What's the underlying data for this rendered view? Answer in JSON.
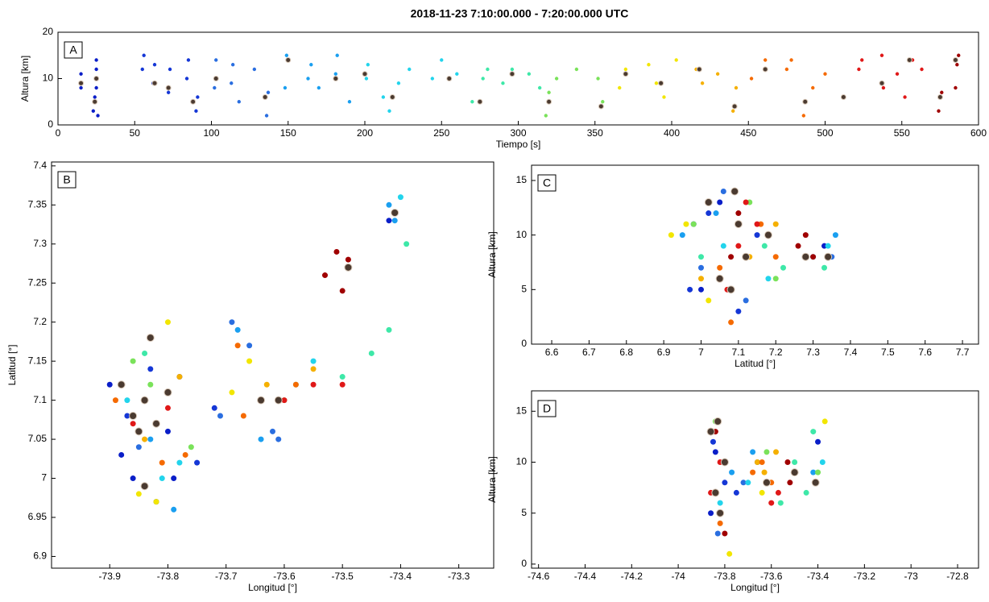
{
  "chart_data": [
    {
      "type": "scatter",
      "title": "2018-11-23   7:10:00.000  -  7:20:00.000 UTC",
      "panel_label": "A",
      "xlabel": "Tiempo [s]",
      "ylabel": "Altura [km]",
      "xlim": [
        0,
        600
      ],
      "xticks": [
        0,
        50,
        100,
        150,
        200,
        250,
        300,
        350,
        400,
        450,
        500,
        550,
        600
      ],
      "ylim": [
        0,
        20
      ],
      "yticks": [
        0,
        10,
        20
      ],
      "series": [
        {
          "color": "#0a1ec8",
          "x": [
            15,
            15,
            23,
            24,
            25,
            25,
            25,
            26
          ],
          "values": [
            8,
            11,
            3,
            6,
            8,
            12,
            14,
            2
          ]
        },
        {
          "color": "#1537d6",
          "x": [
            55,
            56,
            62,
            63,
            72,
            73,
            84,
            85,
            90,
            91
          ],
          "values": [
            12,
            15,
            9,
            13,
            7,
            12,
            10,
            14,
            3,
            6
          ]
        },
        {
          "color": "#2a6ee0",
          "x": [
            102,
            103,
            113,
            114,
            118,
            128,
            136,
            137
          ],
          "values": [
            8,
            14,
            9,
            13,
            5,
            12,
            2,
            7
          ]
        },
        {
          "color": "#1a9ff0",
          "x": [
            148,
            149,
            163,
            165,
            170,
            181,
            182,
            190
          ],
          "values": [
            8,
            15,
            10,
            13,
            8,
            11,
            15,
            5
          ]
        },
        {
          "color": "#22d4ec",
          "x": [
            201,
            202,
            212,
            216,
            222,
            229,
            244,
            250,
            260
          ],
          "values": [
            10,
            13,
            6,
            3,
            9,
            12,
            10,
            14,
            11
          ]
        },
        {
          "color": "#3ee8a8",
          "x": [
            270,
            277,
            280,
            290,
            296,
            307,
            314
          ],
          "values": [
            5,
            10,
            12,
            9,
            12,
            11,
            8
          ]
        },
        {
          "color": "#7ae25a",
          "x": [
            318,
            320,
            325,
            338,
            352,
            355
          ],
          "values": [
            2,
            7,
            10,
            12,
            10,
            5
          ]
        },
        {
          "color": "#f2e600",
          "x": [
            366,
            370,
            385,
            390,
            395,
            403
          ],
          "values": [
            8,
            12,
            13,
            9,
            6,
            14
          ]
        },
        {
          "color": "#f5b000",
          "x": [
            416,
            420,
            430,
            440,
            442
          ],
          "values": [
            12,
            9,
            11,
            3,
            8
          ]
        },
        {
          "color": "#f56a00",
          "x": [
            452,
            461,
            475,
            478,
            486,
            492,
            500
          ],
          "values": [
            10,
            14,
            12,
            14,
            2,
            8,
            11
          ]
        },
        {
          "color": "#e01818",
          "x": [
            512,
            522,
            524,
            537,
            538,
            547,
            552,
            557,
            563
          ],
          "values": [
            6,
            12,
            14,
            15,
            8,
            11,
            6,
            14,
            12
          ]
        },
        {
          "color": "#a00000",
          "x": [
            574,
            576,
            585,
            586,
            587
          ],
          "values": [
            3,
            7,
            8,
            13,
            15
          ]
        },
        {
          "color": "#4a3a30",
          "edgecolor": "#d8c8b8",
          "x": [
            15,
            24,
            25,
            63,
            72,
            88,
            103,
            135,
            150,
            181,
            200,
            218,
            255,
            275,
            296,
            320,
            354,
            370,
            393,
            418,
            441,
            461,
            487,
            512,
            537,
            555,
            575,
            585
          ],
          "values": [
            9,
            5,
            10,
            9,
            8,
            5,
            10,
            6,
            14,
            10,
            11,
            6,
            10,
            5,
            11,
            5,
            4,
            11,
            9,
            12,
            4,
            12,
            5,
            6,
            9,
            14,
            6,
            14
          ]
        }
      ]
    },
    {
      "type": "scatter",
      "panel_label": "B",
      "xlabel": "Longitud [°]",
      "ylabel": "Latitud [°]",
      "xlim": [
        -74.0,
        -73.24
      ],
      "xticks": [
        -73.9,
        -73.8,
        -73.7,
        -73.6,
        -73.5,
        -73.4,
        -73.3
      ],
      "ylim": [
        6.885,
        7.405
      ],
      "yticks": [
        6.9,
        6.95,
        7,
        7.05,
        7.1,
        7.15,
        7.2,
        7.25,
        7.3,
        7.35,
        7.4
      ],
      "series": [
        {
          "color": "#0a1ec8",
          "x": [
            -73.9,
            -73.88,
            -73.86,
            -73.8,
            -73.79,
            -73.42
          ],
          "values": [
            7.12,
            7.03,
            7.0,
            7.06,
            7.0,
            7.33
          ]
        },
        {
          "color": "#1537d6",
          "x": [
            -73.87,
            -73.83,
            -73.78,
            -73.75,
            -73.82,
            -73.72
          ],
          "values": [
            7.08,
            7.14,
            7.13,
            7.02,
            6.97,
            7.09
          ]
        },
        {
          "color": "#2a6ee0",
          "x": [
            -73.71,
            -73.69,
            -73.66,
            -73.62,
            -73.61,
            -73.85
          ],
          "values": [
            7.08,
            7.2,
            7.17,
            7.06,
            7.05,
            7.04
          ]
        },
        {
          "color": "#1a9ff0",
          "x": [
            -73.68,
            -73.64,
            -73.42,
            -73.41,
            -73.79,
            -73.83
          ],
          "values": [
            7.19,
            7.05,
            7.35,
            7.33,
            6.96,
            7.05
          ]
        },
        {
          "color": "#22d4ec",
          "x": [
            -73.81,
            -73.78,
            -73.4,
            -73.87,
            -73.55
          ],
          "values": [
            7.0,
            7.02,
            7.36,
            7.1,
            7.15
          ]
        },
        {
          "color": "#3ee8a8",
          "x": [
            -73.5,
            -73.45,
            -73.42,
            -73.39,
            -73.58,
            -73.84
          ],
          "values": [
            7.13,
            7.16,
            7.19,
            7.3,
            7.12,
            7.16
          ]
        },
        {
          "color": "#7ae25a",
          "x": [
            -73.86,
            -73.83,
            -73.76,
            -73.6
          ],
          "values": [
            7.15,
            7.12,
            7.04,
            7.1
          ]
        },
        {
          "color": "#f2e600",
          "x": [
            -73.85,
            -73.82,
            -73.66,
            -73.69,
            -73.8
          ],
          "values": [
            6.98,
            6.97,
            7.15,
            7.11,
            7.2
          ]
        },
        {
          "color": "#f5b000",
          "x": [
            -73.84,
            -73.78,
            -73.63,
            -73.55
          ],
          "values": [
            7.05,
            7.13,
            7.12,
            7.14
          ]
        },
        {
          "color": "#f56a00",
          "x": [
            -73.89,
            -73.77,
            -73.68,
            -73.67,
            -73.58,
            -73.81
          ],
          "values": [
            7.1,
            7.03,
            7.17,
            7.08,
            7.12,
            7.02
          ]
        },
        {
          "color": "#e01818",
          "x": [
            -73.86,
            -73.84,
            -73.8,
            -73.6,
            -73.55,
            -73.5,
            -73.83
          ],
          "values": [
            7.07,
            7.1,
            7.09,
            7.1,
            7.12,
            7.12,
            7.18
          ]
        },
        {
          "color": "#a00000",
          "x": [
            -73.53,
            -73.51,
            -73.49,
            -73.5,
            -73.82
          ],
          "values": [
            7.26,
            7.29,
            7.28,
            7.24,
            7.07
          ]
        },
        {
          "color": "#4a3a30",
          "edgecolor": "#d8c8b8",
          "x": [
            -73.88,
            -73.86,
            -73.84,
            -73.82,
            -73.8,
            -73.85,
            -73.83,
            -73.64,
            -73.61,
            -73.49,
            -73.41,
            -73.84
          ],
          "values": [
            7.12,
            7.08,
            7.1,
            7.07,
            7.11,
            7.06,
            7.18,
            7.1,
            7.1,
            7.27,
            7.34,
            6.99
          ]
        }
      ]
    },
    {
      "type": "scatter",
      "panel_label": "C",
      "xlabel": "Latitud [°]",
      "ylabel": "Altura [km]",
      "xlim": [
        6.546,
        7.743
      ],
      "xticks": [
        6.6,
        6.7,
        6.8,
        6.9,
        7,
        7.1,
        7.2,
        7.3,
        7.4,
        7.5,
        7.6,
        7.7
      ],
      "ylim": [
        0,
        16.4
      ],
      "yticks": [
        0,
        5,
        10,
        15
      ],
      "series": [
        {
          "color": "#0a1ec8",
          "x": [
            7.0,
            6.98,
            7.05,
            7.33
          ],
          "values": [
            5,
            11,
            13,
            9
          ]
        },
        {
          "color": "#1537d6",
          "x": [
            6.97,
            7.02,
            7.1,
            7.15
          ],
          "values": [
            5,
            12,
            3,
            10
          ]
        },
        {
          "color": "#2a6ee0",
          "x": [
            7.0,
            7.06,
            7.12,
            7.35
          ],
          "values": [
            7,
            14,
            4,
            8
          ]
        },
        {
          "color": "#1a9ff0",
          "x": [
            6.95,
            7.04,
            7.3,
            7.36
          ],
          "values": [
            10,
            12,
            8,
            10
          ]
        },
        {
          "color": "#22d4ec",
          "x": [
            7.06,
            7.18,
            7.34
          ],
          "values": [
            9,
            6,
            9
          ]
        },
        {
          "color": "#3ee8a8",
          "x": [
            7.0,
            7.17,
            7.33,
            7.22
          ],
          "values": [
            8,
            9,
            7,
            7
          ]
        },
        {
          "color": "#7ae25a",
          "x": [
            6.98,
            7.2,
            7.13
          ],
          "values": [
            11,
            6,
            13
          ]
        },
        {
          "color": "#f2e600",
          "x": [
            6.92,
            6.96,
            7.02
          ],
          "values": [
            10,
            11,
            4
          ]
        },
        {
          "color": "#f5b000",
          "x": [
            7.0,
            7.2,
            7.13
          ],
          "values": [
            6,
            11,
            8
          ]
        },
        {
          "color": "#f56a00",
          "x": [
            7.05,
            7.16,
            7.2,
            7.08
          ],
          "values": [
            7,
            11,
            8,
            2
          ]
        },
        {
          "color": "#e01818",
          "x": [
            7.07,
            7.1,
            7.12,
            7.15
          ],
          "values": [
            5,
            9,
            13,
            11
          ]
        },
        {
          "color": "#a00000",
          "x": [
            7.08,
            7.1,
            7.26,
            7.28,
            7.3
          ],
          "values": [
            8,
            12,
            9,
            10,
            8
          ]
        },
        {
          "color": "#4a3a30",
          "edgecolor": "#d8c8b8",
          "x": [
            7.02,
            7.05,
            7.08,
            7.1,
            7.09,
            7.12,
            7.18,
            7.28,
            7.34
          ],
          "values": [
            13,
            6,
            5,
            11,
            14,
            8,
            10,
            8,
            8
          ]
        }
      ]
    },
    {
      "type": "scatter",
      "panel_label": "D",
      "xlabel": "Longitud [°]",
      "ylabel": "Altura [km]",
      "xlim": [
        -74.63,
        -72.71
      ],
      "xticks": [
        -74.6,
        -74.4,
        -74.2,
        -74,
        -73.8,
        -73.6,
        -73.4,
        -73.2,
        -73,
        -72.8
      ],
      "ylim": [
        -0.4,
        17
      ],
      "yticks": [
        0,
        5,
        10,
        15
      ],
      "series": [
        {
          "color": "#0a1ec8",
          "x": [
            -73.86,
            -73.84,
            -73.4
          ],
          "values": [
            5,
            11,
            12
          ]
        },
        {
          "color": "#1537d6",
          "x": [
            -73.85,
            -73.8,
            -73.75
          ],
          "values": [
            12,
            8,
            7
          ]
        },
        {
          "color": "#2a6ee0",
          "x": [
            -73.83,
            -73.72,
            -73.66
          ],
          "values": [
            3,
            8,
            10
          ]
        },
        {
          "color": "#1a9ff0",
          "x": [
            -73.77,
            -73.68,
            -73.42
          ],
          "values": [
            9,
            11,
            9
          ]
        },
        {
          "color": "#22d4ec",
          "x": [
            -73.82,
            -73.7,
            -73.38
          ],
          "values": [
            6,
            8,
            10
          ]
        },
        {
          "color": "#3ee8a8",
          "x": [
            -73.5,
            -73.45,
            -73.42,
            -73.56
          ],
          "values": [
            10,
            7,
            13,
            6
          ]
        },
        {
          "color": "#7ae25a",
          "x": [
            -73.84,
            -73.62,
            -73.4
          ],
          "values": [
            14,
            11,
            9
          ]
        },
        {
          "color": "#f2e600",
          "x": [
            -73.78,
            -73.64,
            -73.37
          ],
          "values": [
            1,
            7,
            14
          ]
        },
        {
          "color": "#f5b000",
          "x": [
            -73.66,
            -73.63,
            -73.58
          ],
          "values": [
            10,
            9,
            11
          ]
        },
        {
          "color": "#f56a00",
          "x": [
            -73.68,
            -73.64,
            -73.6,
            -73.82
          ],
          "values": [
            9,
            10,
            8,
            4
          ]
        },
        {
          "color": "#e01818",
          "x": [
            -73.86,
            -73.82,
            -73.57,
            -73.6
          ],
          "values": [
            7,
            10,
            7,
            6
          ]
        },
        {
          "color": "#a00000",
          "x": [
            -73.84,
            -73.8,
            -73.53,
            -73.52
          ],
          "values": [
            13,
            3,
            10,
            8
          ]
        },
        {
          "color": "#4a3a30",
          "edgecolor": "#d8c8b8",
          "x": [
            -73.86,
            -73.84,
            -73.82,
            -73.8,
            -73.83,
            -73.62,
            -73.5,
            -73.41
          ],
          "values": [
            13,
            7,
            5,
            10,
            14,
            8,
            9,
            8
          ]
        }
      ]
    }
  ]
}
